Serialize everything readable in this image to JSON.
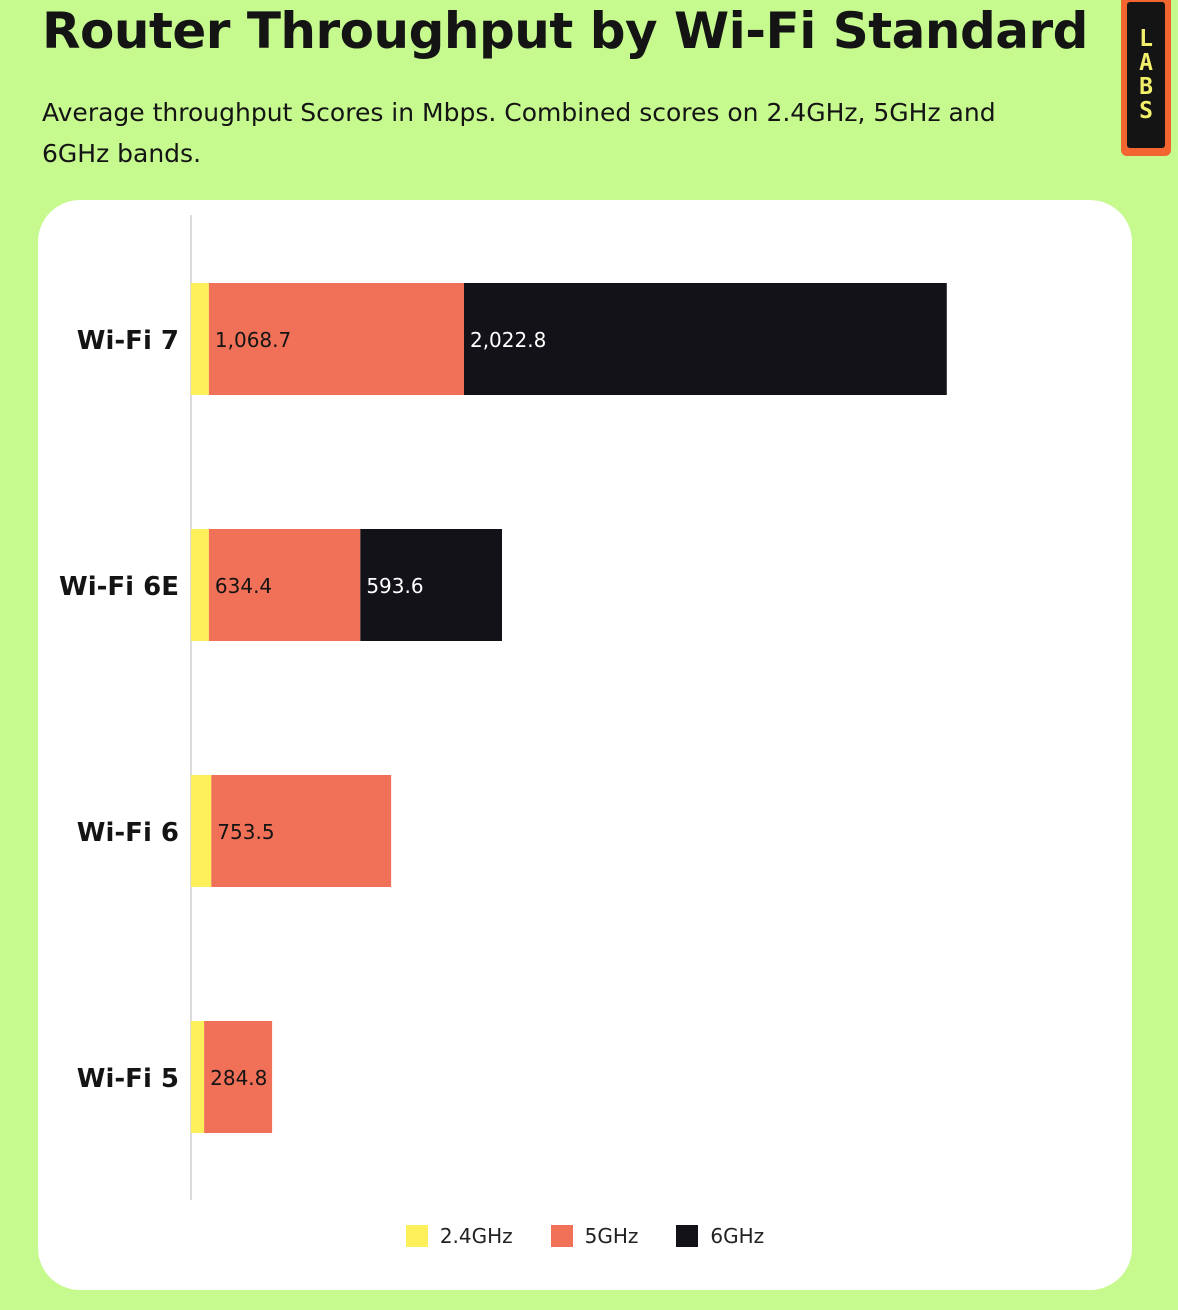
{
  "header": {
    "title": "Router Throughput by Wi-Fi Standard",
    "subtitle": "Average throughput Scores in Mbps. Combined scores on 2.4GHz, 5GHz and 6GHz bands.",
    "badge_letters": [
      "L",
      "A",
      "B",
      "S"
    ]
  },
  "colors": {
    "background": "#c6f98e",
    "band_24": "#fef05a",
    "band_5": "#f07158",
    "band_6": "#141219",
    "badge": "#f26530"
  },
  "chart_data": {
    "type": "bar",
    "orientation": "horizontal",
    "stacked": true,
    "categories": [
      "Wi-Fi 7",
      "Wi-Fi 6E",
      "Wi-Fi 6",
      "Wi-Fi 5"
    ],
    "series": [
      {
        "name": "2.4GHz",
        "values": [
          75,
          75,
          85,
          55
        ],
        "labels": [
          "",
          "",
          "",
          ""
        ]
      },
      {
        "name": "5GHz",
        "values": [
          1068.7,
          634.4,
          753.5,
          284.8
        ],
        "labels": [
          "1,068.7",
          "634.4",
          "753.5",
          "284.8"
        ]
      },
      {
        "name": "6GHz",
        "values": [
          2022.8,
          593.6,
          0,
          0
        ],
        "labels": [
          "2,022.8",
          "593.6",
          "",
          ""
        ]
      }
    ],
    "xlim": [
      0,
      3800
    ],
    "grid": false,
    "legend_position": "bottom-center"
  }
}
